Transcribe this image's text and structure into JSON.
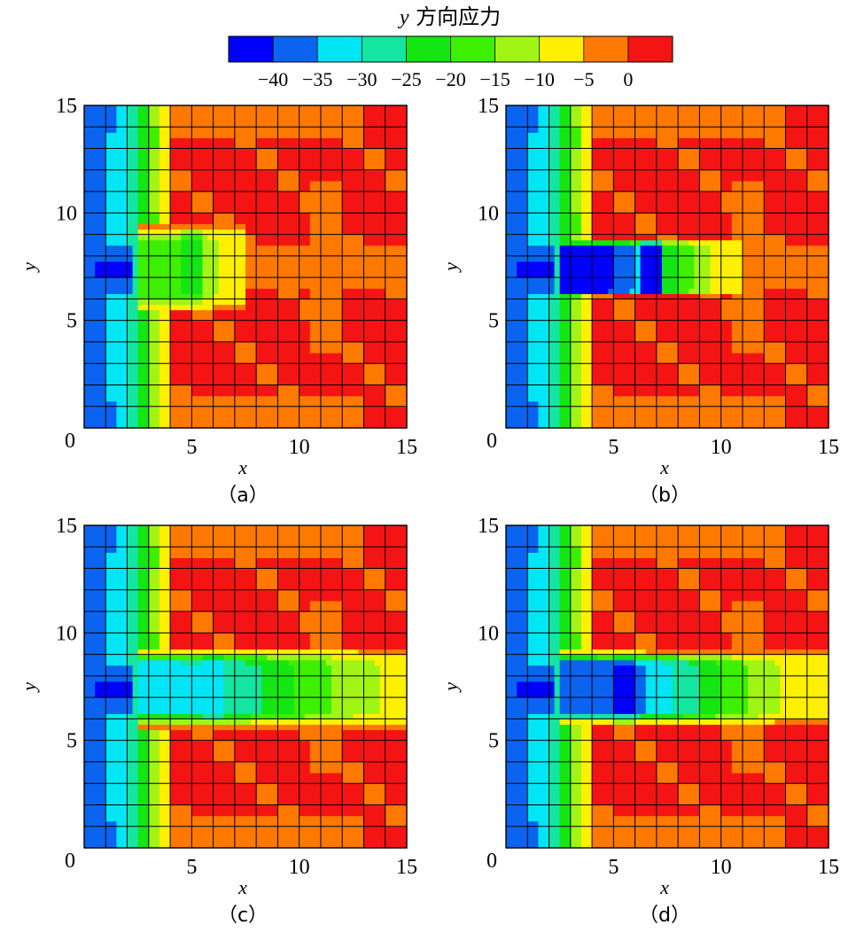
{
  "colorbar": {
    "title_symbol": "y",
    "title_text": "方向应力",
    "tick_labels": [
      "−40",
      "−35",
      "−30",
      "−25",
      "−20",
      "−15",
      "−10",
      "−5",
      "0"
    ],
    "bands": [
      {
        "range": [
          -45,
          -40
        ],
        "color": "#0000FF"
      },
      {
        "range": [
          -40,
          -35
        ],
        "color": "#0A64F0"
      },
      {
        "range": [
          -35,
          -30
        ],
        "color": "#00E6F5"
      },
      {
        "range": [
          -30,
          -25
        ],
        "color": "#12E6A0"
      },
      {
        "range": [
          -25,
          -20
        ],
        "color": "#14E614"
      },
      {
        "range": [
          -20,
          -15
        ],
        "color": "#3CF000"
      },
      {
        "range": [
          -15,
          -10
        ],
        "color": "#A0F514"
      },
      {
        "range": [
          -10,
          -5
        ],
        "color": "#FFF000"
      },
      {
        "range": [
          -5,
          0
        ],
        "color": "#FF7800"
      },
      {
        "range": [
          0,
          5
        ],
        "color": "#F51414"
      }
    ]
  },
  "chart_data": [
    {
      "type": "heatmap",
      "panel": "a",
      "caption": "（a）",
      "xlabel": "x",
      "ylabel": "y",
      "xlim": [
        0,
        15
      ],
      "ylim": [
        0,
        15
      ],
      "xticks": [
        "5",
        "10",
        "15"
      ],
      "yticks": [
        "5",
        "10",
        "15"
      ],
      "origin_label": "0",
      "grid": true,
      "grid_spacing": 1,
      "field": {
        "wall": 1.0,
        "tool_length": 3.5,
        "tool_core": -20,
        "notch_amp": 0.5,
        "peak_x": 5.0,
        "fringe": 1.0
      }
    },
    {
      "type": "heatmap",
      "panel": "b",
      "caption": "（b）",
      "xlabel": "x",
      "ylabel": "y",
      "xlim": [
        0,
        15
      ],
      "ylim": [
        0,
        15
      ],
      "xticks": [
        "5",
        "10",
        "15"
      ],
      "yticks": [
        "5",
        "10",
        "15"
      ],
      "origin_label": "0",
      "grid": true,
      "grid_spacing": 1,
      "field": {
        "wall": 1.0,
        "tool_length": 7.0,
        "tool_core": -43,
        "notch_amp": 0.6,
        "peak_x": 6.8,
        "fringe": 0.25
      }
    },
    {
      "type": "heatmap",
      "panel": "c",
      "caption": "（c）",
      "xlabel": "x",
      "ylabel": "y",
      "xlim": [
        0,
        15
      ],
      "ylim": [
        0,
        15
      ],
      "xticks": [
        "5",
        "10",
        "15"
      ],
      "yticks": [
        "5",
        "10",
        "15"
      ],
      "origin_label": "0",
      "grid": true,
      "grid_spacing": 1,
      "field": {
        "wall": 1.0,
        "tool_length": 12.5,
        "tool_core": -32,
        "notch_amp": 0.5,
        "peak_x": 6.0,
        "fringe": 0.8
      }
    },
    {
      "type": "heatmap",
      "panel": "d",
      "caption": "（d）",
      "xlabel": "x",
      "ylabel": "y",
      "xlim": [
        0,
        15
      ],
      "ylim": [
        0,
        15
      ],
      "xticks": [
        "5",
        "10",
        "15"
      ],
      "yticks": [
        "5",
        "10",
        "15"
      ],
      "origin_label": "0",
      "grid": true,
      "grid_spacing": 1,
      "field": {
        "wall": 1.0,
        "tool_length": 11.0,
        "tool_core": -40,
        "notch_amp": 0.6,
        "peak_x": 5.5,
        "fringe": 0.7
      }
    }
  ]
}
